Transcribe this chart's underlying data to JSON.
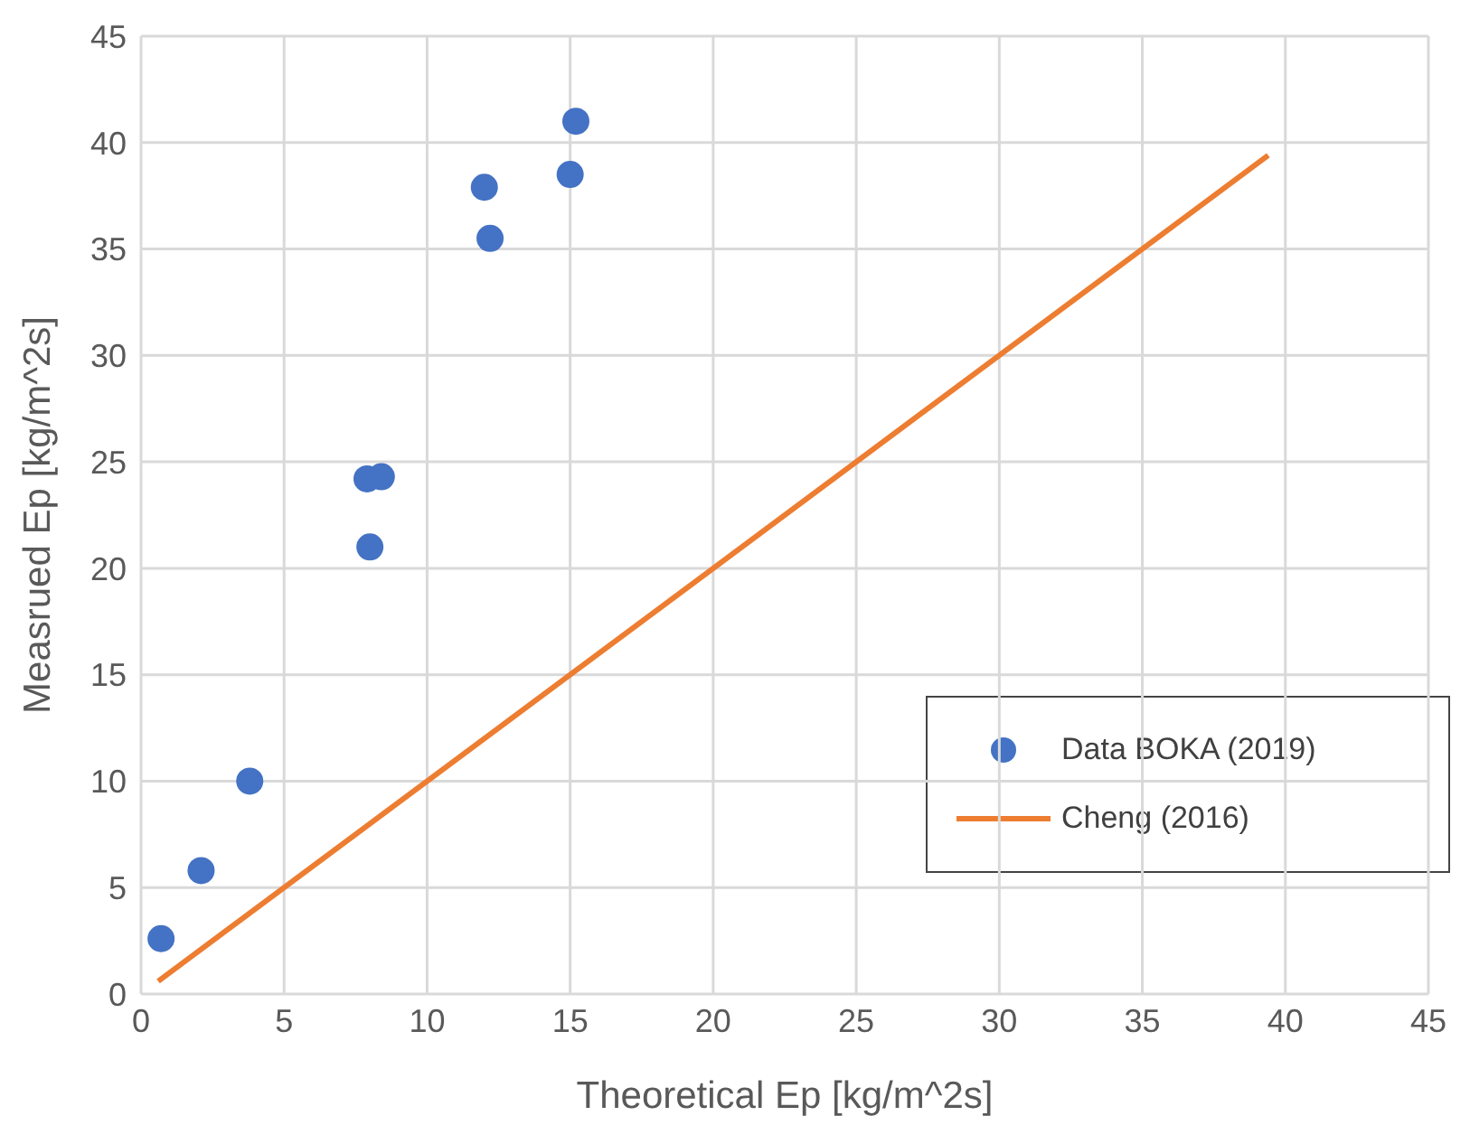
{
  "chart_data": {
    "type": "scatter",
    "xlabel": "Theoretical Ep [kg/m^2s]",
    "ylabel": "Measrued Ep [kg/m^2s]",
    "xlim": [
      0,
      45
    ],
    "xticks": [
      0,
      5,
      10,
      15,
      20,
      25,
      30,
      35,
      40,
      45
    ],
    "ylim": [
      0,
      45
    ],
    "yticks": [
      0,
      5,
      10,
      15,
      20,
      25,
      30,
      35,
      40,
      45
    ],
    "grid": true,
    "legend": "bottom right",
    "marker": "circle",
    "series": [
      {
        "name": "Data BOKA (2019)",
        "color": "#4472c4",
        "x": [
          0.7,
          2.1,
          3.8,
          7.9,
          8.4,
          8.0,
          12.0,
          12.2,
          15.0,
          15.2
        ],
        "values": [
          2.6,
          5.8,
          10.0,
          24.2,
          24.3,
          21.0,
          37.9,
          35.5,
          38.5,
          41.0
        ]
      },
      {
        "name": "Cheng (2016)",
        "type": "line",
        "color": "#ed7d31",
        "marker": "none",
        "line_style": "solid",
        "x": [
          0.6,
          39.4
        ],
        "values": [
          0.6,
          39.4
        ]
      }
    ]
  }
}
